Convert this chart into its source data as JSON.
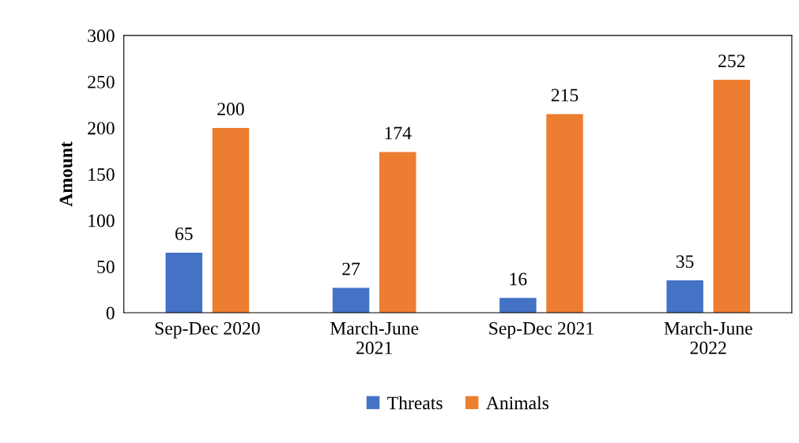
{
  "chart_data": {
    "type": "bar",
    "ylabel": "Amount",
    "categories": [
      "Sep-Dec 2020",
      "March-June\n2021",
      "Sep-Dec 2021",
      "March-June\n2022"
    ],
    "series": [
      {
        "name": "Threats",
        "color": "#4472c4",
        "values": [
          65,
          27,
          16,
          35
        ]
      },
      {
        "name": "Animals",
        "color": "#ed7d31",
        "values": [
          200,
          174,
          215,
          252
        ]
      }
    ],
    "ylim": [
      0,
      300
    ],
    "yticks": [
      0,
      50,
      100,
      150,
      200,
      250,
      300
    ],
    "data_labels": true,
    "legend": "bottom",
    "grid": false
  }
}
